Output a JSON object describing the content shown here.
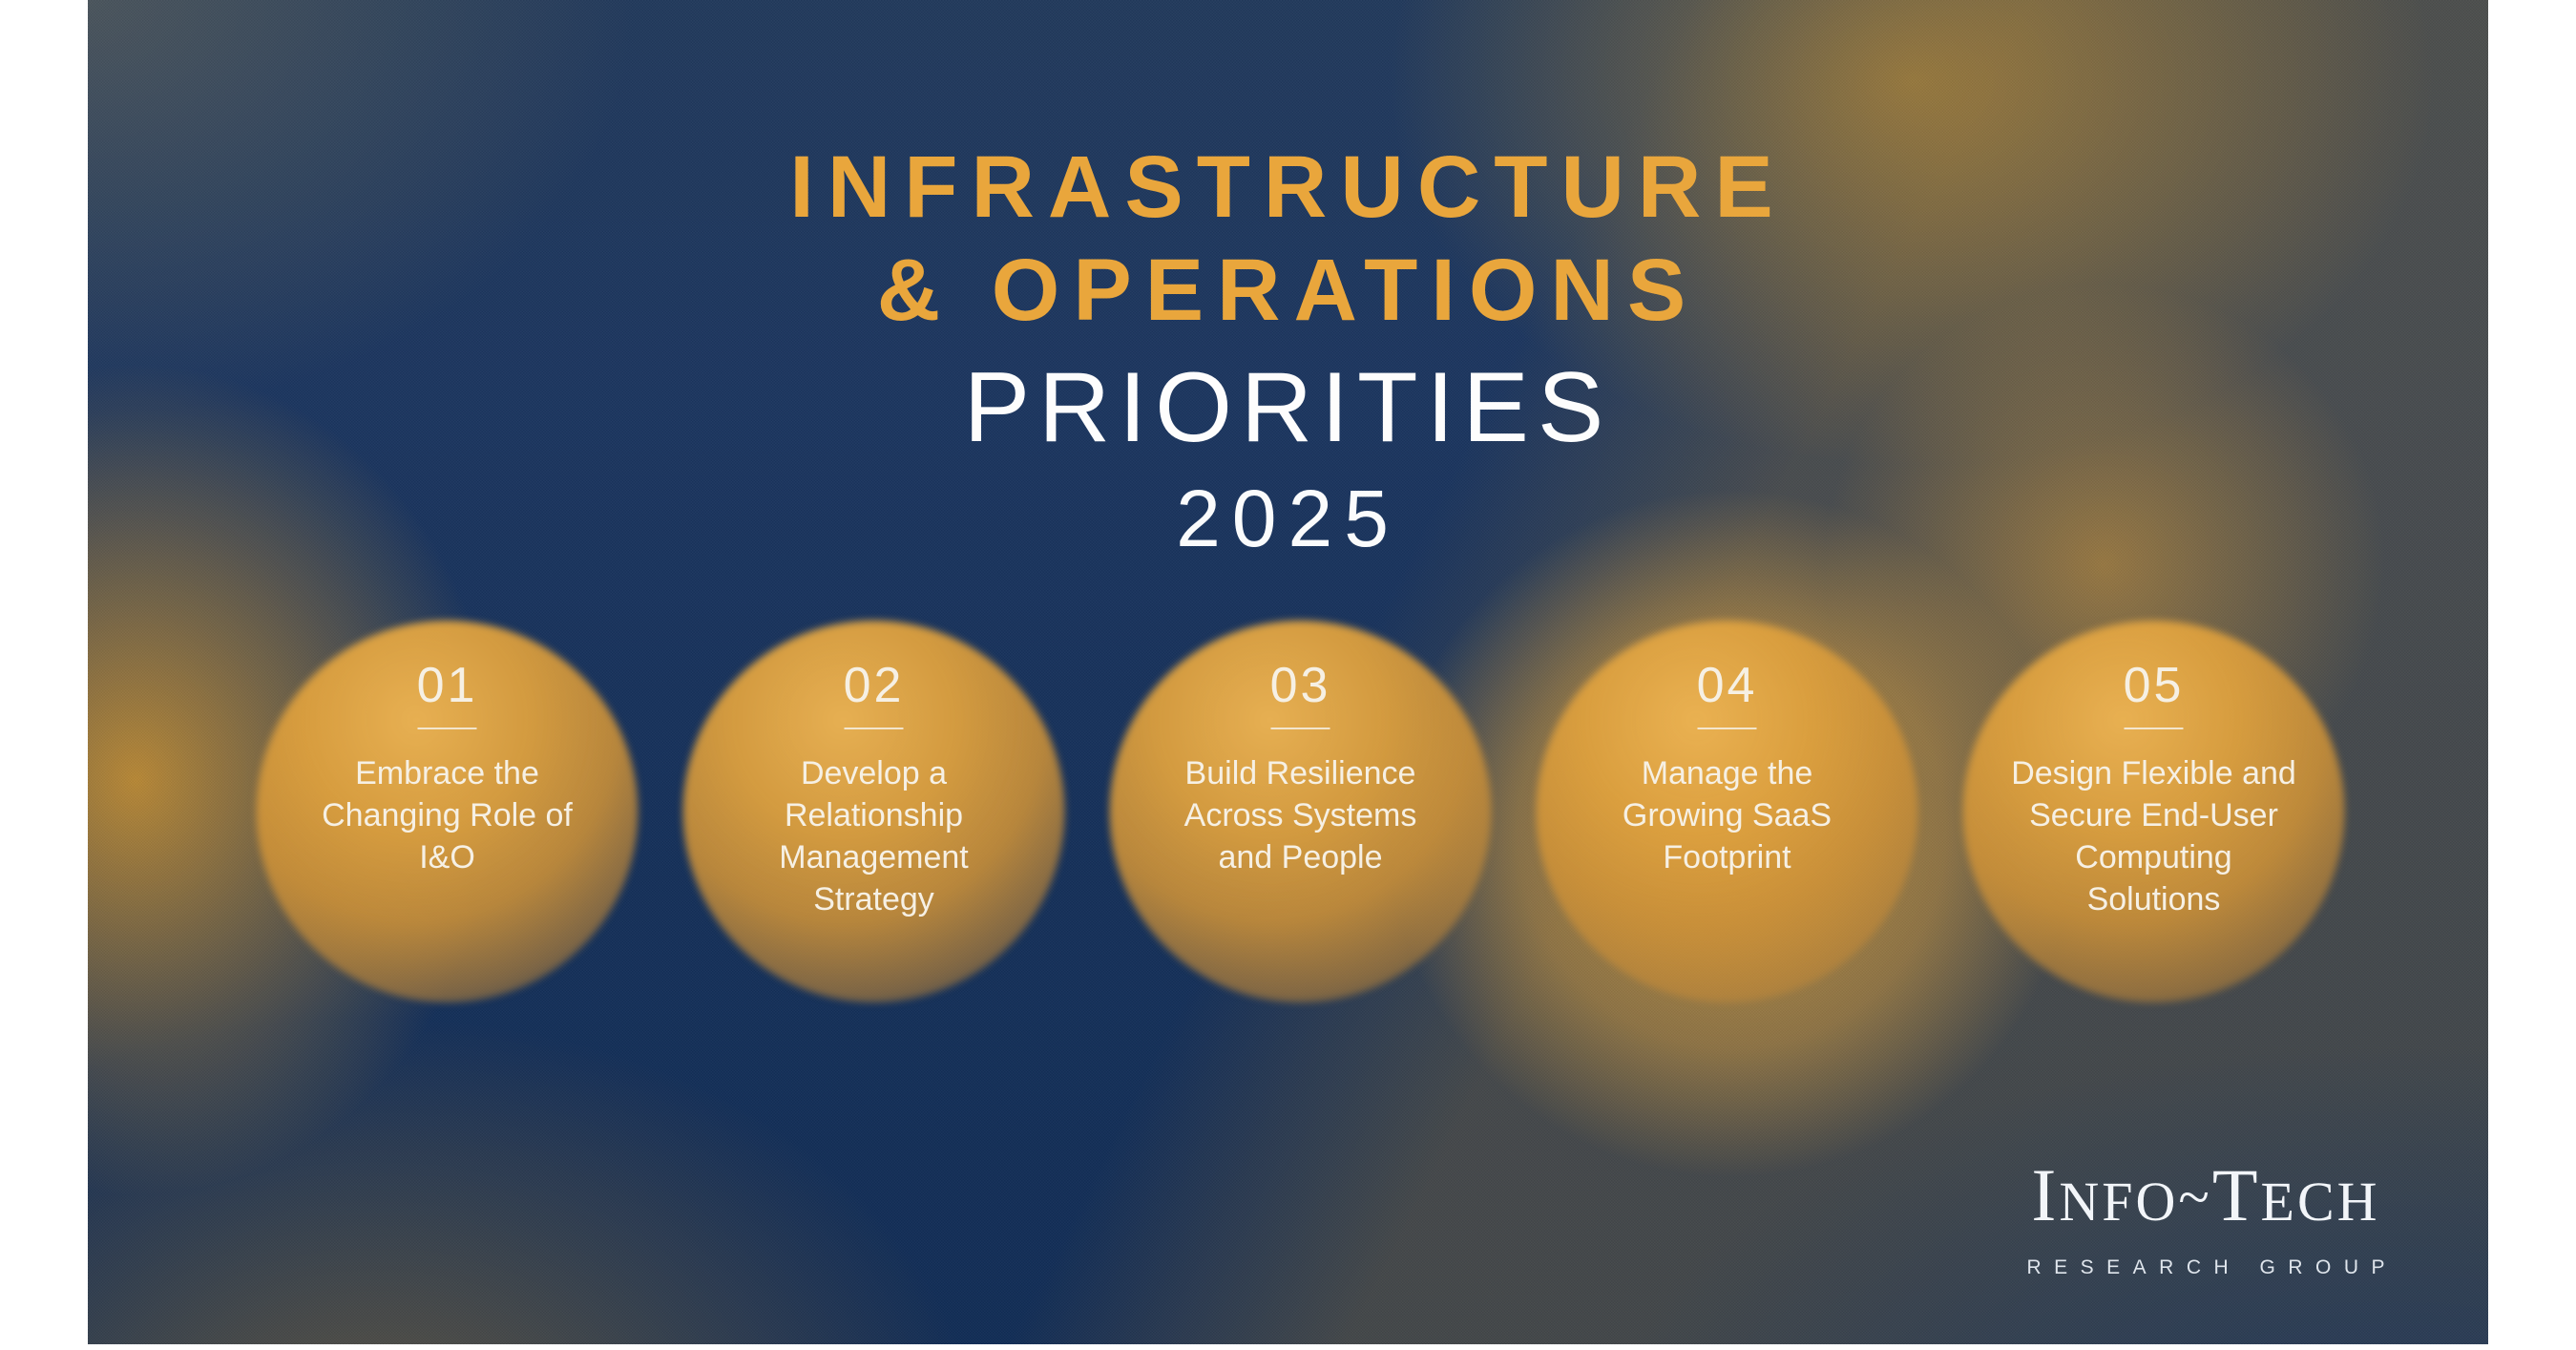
{
  "slide": {
    "title_line1": "INFRASTRUCTURE",
    "title_line2": "& OPERATIONS",
    "subtitle": "PRIORITIES",
    "year": "2025",
    "priorities": [
      {
        "number": "01",
        "label": "Embrace the\nChanging Role of\nI&O"
      },
      {
        "number": "02",
        "label": "Develop a\nRelationship\nManagement\nStrategy"
      },
      {
        "number": "03",
        "label": "Build Resilience\nAcross Systems\nand People"
      },
      {
        "number": "04",
        "label": "Manage the\nGrowing SaaS\nFootprint"
      },
      {
        "number": "05",
        "label": "Design Flexible and\nSecure End-User\nComputing\nSolutions"
      }
    ],
    "logo": {
      "i": "I",
      "nfo": "NFO",
      "tilde": "~",
      "t": "T",
      "ech": "ECH",
      "subtext": "RESEARCH GROUP"
    },
    "colors": {
      "accent_gold": "#E9A63C",
      "navy_base": "#13305A",
      "circle_gold": "#D99C40",
      "text_cream": "#F6F0E4",
      "logo_white": "#F2F5F9"
    }
  }
}
